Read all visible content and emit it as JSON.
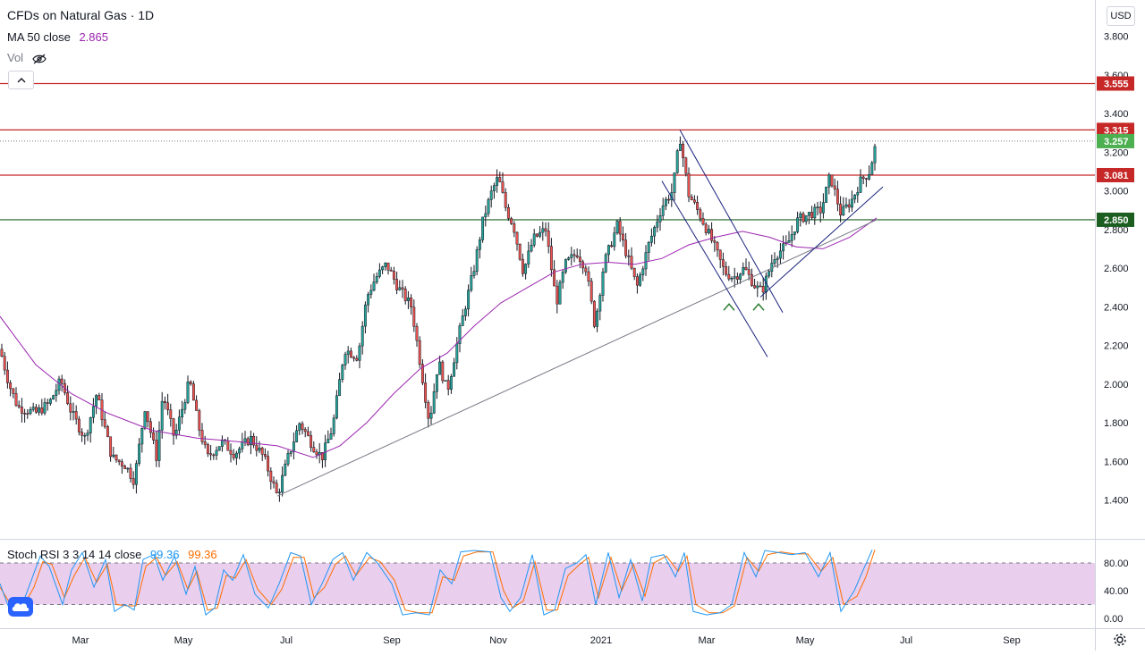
{
  "header": {
    "title": "CFDs on Natural Gas · 1D",
    "ma_label": "MA 50 close",
    "ma_value": "2.865",
    "vol_label": "Vol",
    "currency": "USD"
  },
  "indicator": {
    "label": "Stoch RSI 3 3 14 14 close",
    "k_value": "99.36",
    "d_value": "99.36",
    "ticks": [
      "80.00",
      "40.00",
      "0.00"
    ],
    "band": [
      20,
      80
    ]
  },
  "colors": {
    "up": "#26a69a",
    "down": "#ef5350",
    "ma": "#9c27b0",
    "resistance": "#c62828",
    "support": "#1b5e20",
    "last_price": "#4caf50",
    "trendline": "#1a237e",
    "stoch_k": "#2196f3",
    "stoch_d": "#ff6d00",
    "stoch_band": "#e1bee7"
  },
  "chart_data": {
    "type": "candlestick",
    "x_ticks": [
      "Mar",
      "May",
      "Jul",
      "Sep",
      "Nov",
      "2021",
      "Mar",
      "May",
      "Jul",
      "Sep"
    ],
    "y_ticks": [
      "3.800",
      "3.600",
      "3.400",
      "3.200",
      "3.000",
      "2.800",
      "2.600",
      "2.400",
      "2.200",
      "2.000",
      "1.800",
      "1.600",
      "1.400"
    ],
    "ylim": [
      1.4,
      3.8
    ],
    "last_price": "3.257",
    "levels": [
      {
        "value": "3.555",
        "kind": "resistance"
      },
      {
        "value": "3.315",
        "kind": "resistance"
      },
      {
        "value": "3.081",
        "kind": "resistance"
      },
      {
        "value": "2.850",
        "kind": "support"
      }
    ],
    "price_path": [
      [
        0,
        2.18
      ],
      [
        10,
        2.0
      ],
      [
        20,
        1.88
      ],
      [
        40,
        1.85
      ],
      [
        55,
        1.9
      ],
      [
        68,
        2.02
      ],
      [
        80,
        1.85
      ],
      [
        95,
        1.72
      ],
      [
        108,
        1.95
      ],
      [
        125,
        1.62
      ],
      [
        140,
        1.58
      ],
      [
        150,
        1.5
      ],
      [
        162,
        1.88
      ],
      [
        175,
        1.62
      ],
      [
        182,
        1.95
      ],
      [
        195,
        1.72
      ],
      [
        212,
        2.02
      ],
      [
        222,
        1.78
      ],
      [
        232,
        1.62
      ],
      [
        248,
        1.7
      ],
      [
        262,
        1.64
      ],
      [
        280,
        1.72
      ],
      [
        295,
        1.62
      ],
      [
        310,
        1.42
      ],
      [
        322,
        1.62
      ],
      [
        335,
        1.8
      ],
      [
        350,
        1.68
      ],
      [
        360,
        1.62
      ],
      [
        372,
        1.78
      ],
      [
        385,
        2.18
      ],
      [
        400,
        2.14
      ],
      [
        410,
        2.45
      ],
      [
        420,
        2.55
      ],
      [
        432,
        2.62
      ],
      [
        445,
        2.5
      ],
      [
        460,
        2.4
      ],
      [
        470,
        2.1
      ],
      [
        480,
        1.8
      ],
      [
        490,
        2.12
      ],
      [
        500,
        1.96
      ],
      [
        515,
        2.3
      ],
      [
        530,
        2.6
      ],
      [
        540,
        2.85
      ],
      [
        550,
        3.0
      ],
      [
        557,
        3.07
      ],
      [
        566,
        2.9
      ],
      [
        574,
        2.82
      ],
      [
        585,
        2.58
      ],
      [
        596,
        2.75
      ],
      [
        610,
        2.8
      ],
      [
        622,
        2.42
      ],
      [
        632,
        2.62
      ],
      [
        645,
        2.68
      ],
      [
        655,
        2.6
      ],
      [
        665,
        2.3
      ],
      [
        675,
        2.62
      ],
      [
        690,
        2.82
      ],
      [
        700,
        2.68
      ],
      [
        712,
        2.5
      ],
      [
        725,
        2.72
      ],
      [
        740,
        2.92
      ],
      [
        752,
        3.0
      ],
      [
        760,
        3.28
      ],
      [
        770,
        2.98
      ],
      [
        782,
        2.88
      ],
      [
        795,
        2.75
      ],
      [
        810,
        2.58
      ],
      [
        820,
        2.55
      ],
      [
        832,
        2.6
      ],
      [
        845,
        2.5
      ],
      [
        852,
        2.48
      ],
      [
        865,
        2.66
      ],
      [
        880,
        2.72
      ],
      [
        892,
        2.85
      ],
      [
        905,
        2.88
      ],
      [
        918,
        2.9
      ],
      [
        928,
        3.08
      ],
      [
        940,
        2.88
      ],
      [
        952,
        2.95
      ],
      [
        962,
        3.05
      ],
      [
        972,
        3.1
      ],
      [
        980,
        3.26
      ]
    ],
    "ma_path": [
      [
        0,
        2.35
      ],
      [
        40,
        2.1
      ],
      [
        80,
        1.95
      ],
      [
        120,
        1.85
      ],
      [
        170,
        1.76
      ],
      [
        220,
        1.72
      ],
      [
        270,
        1.7
      ],
      [
        310,
        1.68
      ],
      [
        350,
        1.62
      ],
      [
        380,
        1.68
      ],
      [
        410,
        1.8
      ],
      [
        440,
        1.95
      ],
      [
        470,
        2.08
      ],
      [
        500,
        2.16
      ],
      [
        530,
        2.3
      ],
      [
        560,
        2.42
      ],
      [
        590,
        2.5
      ],
      [
        620,
        2.58
      ],
      [
        650,
        2.62
      ],
      [
        680,
        2.63
      ],
      [
        710,
        2.62
      ],
      [
        740,
        2.65
      ],
      [
        770,
        2.72
      ],
      [
        800,
        2.76
      ],
      [
        830,
        2.79
      ],
      [
        860,
        2.76
      ],
      [
        890,
        2.71
      ],
      [
        920,
        2.7
      ],
      [
        950,
        2.76
      ],
      [
        980,
        2.86
      ]
    ],
    "trendlines": [
      {
        "from": [
          310,
          1.42
        ],
        "to": [
          980,
          2.85
        ]
      },
      {
        "from": [
          760,
          3.315
        ],
        "to": [
          875,
          2.37
        ]
      },
      {
        "from": [
          740,
          3.05
        ],
        "to": [
          858,
          2.14
        ]
      },
      {
        "from": [
          850,
          2.45
        ],
        "to": [
          987,
          3.02
        ]
      }
    ],
    "pivot_markers": [
      [
        815,
        2.4
      ],
      [
        848,
        2.4
      ]
    ],
    "stoch_k": [
      [
        0,
        50
      ],
      [
        10,
        15
      ],
      [
        22,
        10
      ],
      [
        35,
        55
      ],
      [
        45,
        90
      ],
      [
        55,
        75
      ],
      [
        70,
        20
      ],
      [
        80,
        70
      ],
      [
        92,
        95
      ],
      [
        105,
        45
      ],
      [
        118,
        85
      ],
      [
        128,
        10
      ],
      [
        140,
        20
      ],
      [
        150,
        12
      ],
      [
        160,
        85
      ],
      [
        172,
        92
      ],
      [
        182,
        55
      ],
      [
        195,
        90
      ],
      [
        208,
        35
      ],
      [
        218,
        75
      ],
      [
        230,
        5
      ],
      [
        240,
        15
      ],
      [
        250,
        70
      ],
      [
        260,
        55
      ],
      [
        272,
        92
      ],
      [
        285,
        35
      ],
      [
        300,
        15
      ],
      [
        312,
        50
      ],
      [
        325,
        95
      ],
      [
        336,
        90
      ],
      [
        348,
        20
      ],
      [
        360,
        50
      ],
      [
        372,
        85
      ],
      [
        383,
        95
      ],
      [
        395,
        55
      ],
      [
        410,
        95
      ],
      [
        422,
        80
      ],
      [
        438,
        50
      ],
      [
        450,
        5
      ],
      [
        465,
        8
      ],
      [
        480,
        5
      ],
      [
        492,
        70
      ],
      [
        505,
        50
      ],
      [
        515,
        96
      ],
      [
        530,
        98
      ],
      [
        548,
        96
      ],
      [
        560,
        30
      ],
      [
        570,
        10
      ],
      [
        582,
        30
      ],
      [
        595,
        92
      ],
      [
        608,
        5
      ],
      [
        620,
        12
      ],
      [
        632,
        72
      ],
      [
        645,
        80
      ],
      [
        655,
        92
      ],
      [
        666,
        20
      ],
      [
        680,
        95
      ],
      [
        692,
        30
      ],
      [
        705,
        85
      ],
      [
        718,
        25
      ],
      [
        728,
        88
      ],
      [
        742,
        92
      ],
      [
        755,
        60
      ],
      [
        765,
        95
      ],
      [
        775,
        10
      ],
      [
        790,
        5
      ],
      [
        805,
        8
      ],
      [
        818,
        20
      ],
      [
        832,
        95
      ],
      [
        845,
        60
      ],
      [
        855,
        98
      ],
      [
        870,
        95
      ],
      [
        885,
        92
      ],
      [
        900,
        95
      ],
      [
        915,
        60
      ],
      [
        928,
        95
      ],
      [
        940,
        10
      ],
      [
        955,
        40
      ],
      [
        965,
        70
      ],
      [
        975,
        99
      ]
    ],
    "stoch_d": [
      [
        0,
        45
      ],
      [
        12,
        20
      ],
      [
        25,
        15
      ],
      [
        38,
        45
      ],
      [
        48,
        82
      ],
      [
        58,
        78
      ],
      [
        72,
        30
      ],
      [
        83,
        62
      ],
      [
        95,
        88
      ],
      [
        108,
        52
      ],
      [
        120,
        78
      ],
      [
        130,
        20
      ],
      [
        142,
        18
      ],
      [
        152,
        18
      ],
      [
        163,
        75
      ],
      [
        175,
        88
      ],
      [
        185,
        62
      ],
      [
        198,
        82
      ],
      [
        210,
        42
      ],
      [
        220,
        68
      ],
      [
        232,
        12
      ],
      [
        243,
        15
      ],
      [
        253,
        62
      ],
      [
        263,
        58
      ],
      [
        275,
        85
      ],
      [
        288,
        42
      ],
      [
        303,
        20
      ],
      [
        315,
        42
      ],
      [
        328,
        88
      ],
      [
        340,
        88
      ],
      [
        351,
        30
      ],
      [
        363,
        45
      ],
      [
        375,
        78
      ],
      [
        386,
        90
      ],
      [
        398,
        62
      ],
      [
        413,
        88
      ],
      [
        425,
        82
      ],
      [
        441,
        55
      ],
      [
        453,
        12
      ],
      [
        468,
        8
      ],
      [
        483,
        8
      ],
      [
        495,
        60
      ],
      [
        508,
        55
      ],
      [
        518,
        90
      ],
      [
        533,
        96
      ],
      [
        551,
        96
      ],
      [
        563,
        40
      ],
      [
        573,
        15
      ],
      [
        585,
        25
      ],
      [
        598,
        82
      ],
      [
        611,
        12
      ],
      [
        623,
        12
      ],
      [
        635,
        62
      ],
      [
        648,
        78
      ],
      [
        658,
        88
      ],
      [
        669,
        30
      ],
      [
        683,
        88
      ],
      [
        695,
        40
      ],
      [
        708,
        78
      ],
      [
        721,
        32
      ],
      [
        731,
        80
      ],
      [
        745,
        90
      ],
      [
        758,
        68
      ],
      [
        768,
        90
      ],
      [
        778,
        20
      ],
      [
        793,
        8
      ],
      [
        808,
        8
      ],
      [
        821,
        18
      ],
      [
        835,
        88
      ],
      [
        848,
        68
      ],
      [
        858,
        92
      ],
      [
        873,
        96
      ],
      [
        888,
        93
      ],
      [
        903,
        93
      ],
      [
        918,
        68
      ],
      [
        931,
        88
      ],
      [
        943,
        20
      ],
      [
        958,
        32
      ],
      [
        968,
        60
      ],
      [
        978,
        99
      ]
    ]
  }
}
